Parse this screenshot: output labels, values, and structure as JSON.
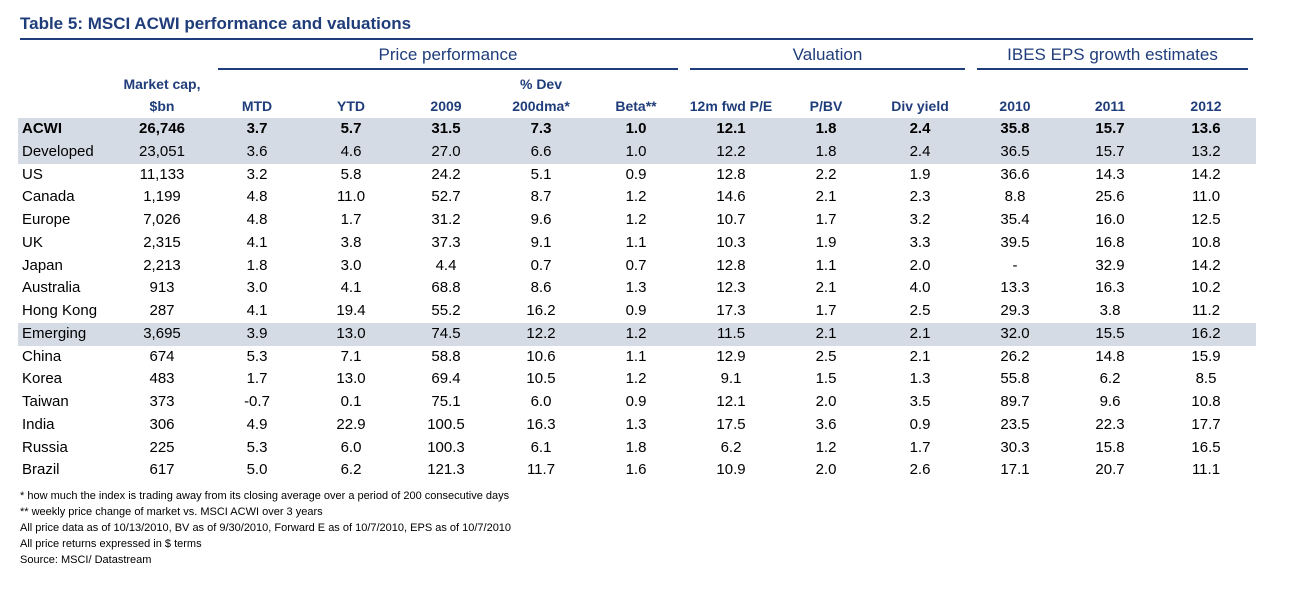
{
  "header": {
    "title": "Table 5: MSCI ACWI performance and valuations"
  },
  "table": {
    "groups": [
      "Price performance",
      "Valuation",
      "IBES EPS growth estimates"
    ],
    "columns": [
      [
        "Market cap,",
        "$bn"
      ],
      [
        "MTD"
      ],
      [
        "YTD"
      ],
      [
        "2009"
      ],
      [
        "% Dev",
        "200dma*"
      ],
      [
        "Beta**"
      ],
      [
        "12m fwd P/E"
      ],
      [
        "P/BV"
      ],
      [
        "Div yield"
      ],
      [
        "2010"
      ],
      [
        "2011"
      ],
      [
        "2012"
      ]
    ],
    "rows": [
      {
        "cells": [
          "ACWI",
          "26,746",
          "3.7",
          "5.7",
          "31.5",
          "7.3",
          "1.0",
          "12.1",
          "1.8",
          "2.4",
          "35.8",
          "15.7",
          "13.6"
        ],
        "highlight": true,
        "bold": true
      },
      {
        "cells": [
          "Developed",
          "23,051",
          "3.6",
          "4.6",
          "27.0",
          "6.6",
          "1.0",
          "12.2",
          "1.8",
          "2.4",
          "36.5",
          "15.7",
          "13.2"
        ],
        "highlight": true,
        "bold": false
      },
      {
        "cells": [
          "US",
          "11,133",
          "3.2",
          "5.8",
          "24.2",
          "5.1",
          "0.9",
          "12.8",
          "2.2",
          "1.9",
          "36.6",
          "14.3",
          "14.2"
        ],
        "highlight": false,
        "bold": false
      },
      {
        "cells": [
          "Canada",
          "1,199",
          "4.8",
          "11.0",
          "52.7",
          "8.7",
          "1.2",
          "14.6",
          "2.1",
          "2.3",
          "8.8",
          "25.6",
          "11.0"
        ],
        "highlight": false,
        "bold": false
      },
      {
        "cells": [
          "Europe",
          "7,026",
          "4.8",
          "1.7",
          "31.2",
          "9.6",
          "1.2",
          "10.7",
          "1.7",
          "3.2",
          "35.4",
          "16.0",
          "12.5"
        ],
        "highlight": false,
        "bold": false
      },
      {
        "cells": [
          "UK",
          "2,315",
          "4.1",
          "3.8",
          "37.3",
          "9.1",
          "1.1",
          "10.3",
          "1.9",
          "3.3",
          "39.5",
          "16.8",
          "10.8"
        ],
        "highlight": false,
        "bold": false
      },
      {
        "cells": [
          "Japan",
          "2,213",
          "1.8",
          "3.0",
          "4.4",
          "0.7",
          "0.7",
          "12.8",
          "1.1",
          "2.0",
          "-",
          "32.9",
          "14.2"
        ],
        "highlight": false,
        "bold": false
      },
      {
        "cells": [
          "Australia",
          "913",
          "3.0",
          "4.1",
          "68.8",
          "8.6",
          "1.3",
          "12.3",
          "2.1",
          "4.0",
          "13.3",
          "16.3",
          "10.2"
        ],
        "highlight": false,
        "bold": false
      },
      {
        "cells": [
          "Hong Kong",
          "287",
          "4.1",
          "19.4",
          "55.2",
          "16.2",
          "0.9",
          "17.3",
          "1.7",
          "2.5",
          "29.3",
          "3.8",
          "11.2"
        ],
        "highlight": false,
        "bold": false
      },
      {
        "cells": [
          "Emerging",
          "3,695",
          "3.9",
          "13.0",
          "74.5",
          "12.2",
          "1.2",
          "11.5",
          "2.1",
          "2.1",
          "32.0",
          "15.5",
          "16.2"
        ],
        "highlight": true,
        "bold": false
      },
      {
        "cells": [
          "China",
          "674",
          "5.3",
          "7.1",
          "58.8",
          "10.6",
          "1.1",
          "12.9",
          "2.5",
          "2.1",
          "26.2",
          "14.8",
          "15.9"
        ],
        "highlight": false,
        "bold": false
      },
      {
        "cells": [
          "Korea",
          "483",
          "1.7",
          "13.0",
          "69.4",
          "10.5",
          "1.2",
          "9.1",
          "1.5",
          "1.3",
          "55.8",
          "6.2",
          "8.5"
        ],
        "highlight": false,
        "bold": false
      },
      {
        "cells": [
          "Taiwan",
          "373",
          "-0.7",
          "0.1",
          "75.1",
          "6.0",
          "0.9",
          "12.1",
          "2.0",
          "3.5",
          "89.7",
          "9.6",
          "10.8"
        ],
        "highlight": false,
        "bold": false
      },
      {
        "cells": [
          "India",
          "306",
          "4.9",
          "22.9",
          "100.5",
          "16.3",
          "1.3",
          "17.5",
          "3.6",
          "0.9",
          "23.5",
          "22.3",
          "17.7"
        ],
        "highlight": false,
        "bold": false
      },
      {
        "cells": [
          "Russia",
          "225",
          "5.3",
          "6.0",
          "100.3",
          "6.1",
          "1.8",
          "6.2",
          "1.2",
          "1.7",
          "30.3",
          "15.8",
          "16.5"
        ],
        "highlight": false,
        "bold": false
      },
      {
        "cells": [
          "Brazil",
          "617",
          "5.0",
          "6.2",
          "121.3",
          "11.7",
          "1.6",
          "10.9",
          "2.0",
          "2.6",
          "17.1",
          "20.7",
          "11.1"
        ],
        "highlight": false,
        "bold": false
      }
    ]
  },
  "notes": [
    "* how much the index is trading away from its closing average over a period of 200 consecutive days",
    "** weekly price change of market vs. MSCI ACWI over 3 years",
    "All price data as of 10/13/2010, BV as of 9/30/2010, Forward E as of 10/7/2010, EPS as of 10/7/2010",
    "All price returns expressed in $ terms",
    "Source: MSCI/ Datastream"
  ]
}
